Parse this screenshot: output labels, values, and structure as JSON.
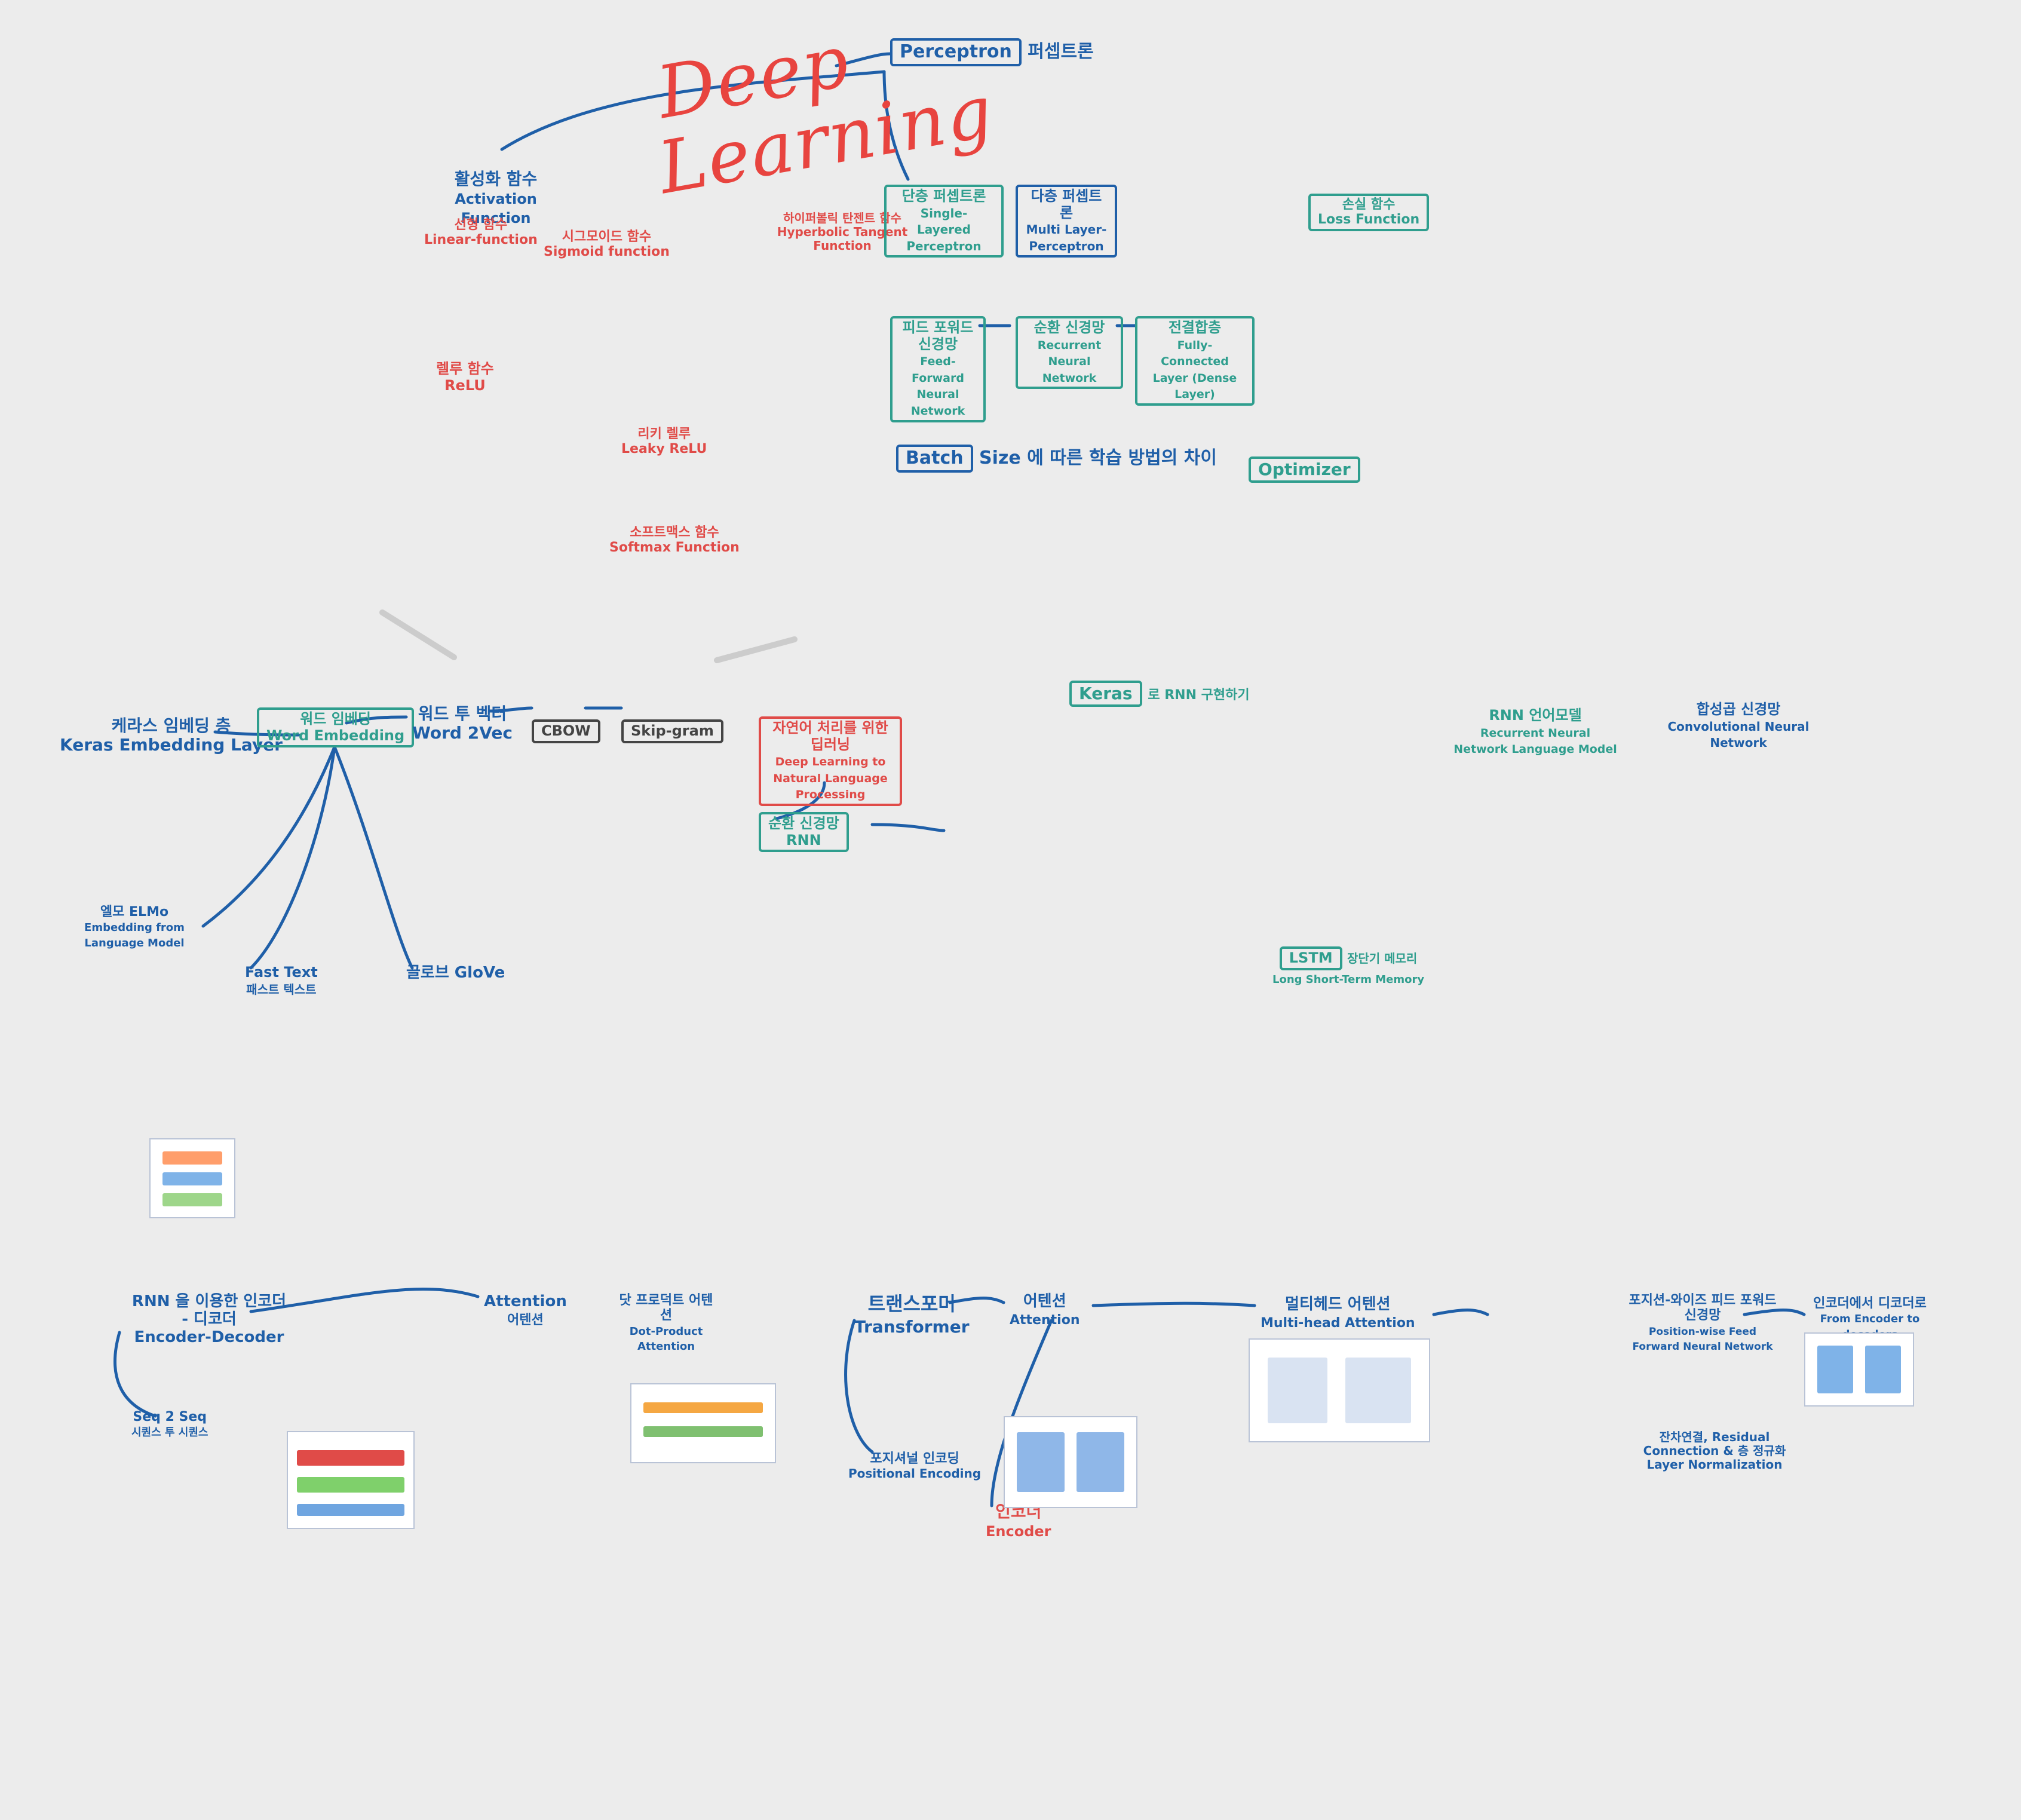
{
  "title": {
    "line1": "Deep",
    "line2": "Learning"
  },
  "colors": {
    "blue": "#1f5fa8",
    "teal": "#2f9e8e",
    "red": "#e04b48",
    "background": "#ececec"
  },
  "topics": {
    "perceptron": {
      "ko": "퍼셉트론",
      "en": "Perceptron"
    },
    "activation": {
      "ko": "활성화 함수",
      "en": "Activation Function"
    },
    "linear": {
      "ko": "선형 함수",
      "en": "Linear-function"
    },
    "sigmoid": {
      "ko": "시그모이드 함수",
      "en": "Sigmoid function"
    },
    "tanh": {
      "ko": "하이퍼볼릭 탄젠트 함수",
      "en": "Hyperbolic Tangent Function"
    },
    "relu": {
      "ko": "렐루 함수",
      "en": "ReLU"
    },
    "leaky_relu": {
      "ko": "리키 렐루",
      "en": "Leaky ReLU"
    },
    "softmax": {
      "ko": "소프트맥스 함수",
      "en": "Softmax Function"
    },
    "single_layer": {
      "ko": "단층 퍼셉트론",
      "en": "Single-Layered Perceptron"
    },
    "mlp": {
      "ko": "다층 퍼셉트론",
      "en": "Multi Layer-Perceptron"
    },
    "ffnn": {
      "ko": "피드 포워드 신경망",
      "en": "Feed-Forward Neural Network"
    },
    "rnn_top": {
      "ko": "순환 신경망",
      "en": "Recurrent Neural Network"
    },
    "fc": {
      "ko": "전결합층",
      "en": "Fully-Connected Layer (Dense Layer)"
    },
    "loss": {
      "ko": "손실 함수",
      "en": "Loss Function"
    },
    "batch": {
      "en": "Batch",
      "ko": "Size 에 따른 학습 방법의 차이"
    },
    "optimizer": {
      "en": "Optimizer"
    },
    "keras_embedding": {
      "ko": "케라스 임베딩 층",
      "en": "Keras Embedding Layer"
    },
    "word_embedding": {
      "ko": "워드 임베딩",
      "en": "Word Embedding"
    },
    "word2vec": {
      "ko": "워드 투 벡터",
      "en": "Word 2Vec"
    },
    "cbow": {
      "en": "CBOW"
    },
    "skipgram": {
      "en": "Skip-gram"
    },
    "elmo": {
      "ko": "엘모 ELMo",
      "en": "Embedding from Language Model"
    },
    "fasttext": {
      "en": "Fast Text",
      "ko": "패스트 텍스트"
    },
    "glove": {
      "ko": "글로브 GloVe"
    },
    "nlp": {
      "ko": "자연어 처리를 위한 딥러닝",
      "en": "Deep Learning to Natural Language Processing"
    },
    "rnn_nlp": {
      "ko": "순환 신경망",
      "en": "RNN"
    },
    "keras_rnn": {
      "en": "Keras",
      "ko": "로 RNN 구현하기"
    },
    "lstm": {
      "en": "LSTM",
      "ko": "장단기 메모리",
      "sub": "Long Short-Term Memory"
    },
    "rnnlm": {
      "ko": "RNN 언어모델",
      "en": "Recurrent Neural Network Language Model"
    },
    "cnn": {
      "ko": "합성곱 신경망",
      "en": "Convolutional Neural Network"
    },
    "seq2seq_enc_dec": {
      "ko": "RNN 을 이용한 인코더 - 디코더",
      "en": "Encoder-Decoder"
    },
    "seq2seq": {
      "en": "Seq 2 Seq",
      "ko": "시퀀스 투 시퀀스"
    },
    "attention": {
      "en": "Attention",
      "ko": "어텐션"
    },
    "dot_attention": {
      "ko": "닷 프로덕트 어텐션",
      "en": "Dot-Product Attention"
    },
    "transformer": {
      "ko": "트랜스포머",
      "en": "Transformer"
    },
    "self_attention": {
      "ko": "어텐션",
      "en": "Attention"
    },
    "multihead": {
      "ko": "멀티헤드 어텐션",
      "en": "Multi-head Attention"
    },
    "positional": {
      "ko": "포지셔널 인코딩",
      "en": "Positional Encoding"
    },
    "encoder": {
      "ko": "인코더",
      "en": "Encoder"
    },
    "position_ffnn": {
      "ko": "포지션-와이즈 피드 포워드 신경망",
      "en": "Position-wise Feed Forward Neural Network"
    },
    "residual": {
      "ko": "잔차연결, Residual Connection & 층 정규화 Layer Normalization"
    },
    "enc_to_dec": {
      "ko": "인코더에서 디코더로",
      "en": "From Encoder to decoders"
    }
  }
}
